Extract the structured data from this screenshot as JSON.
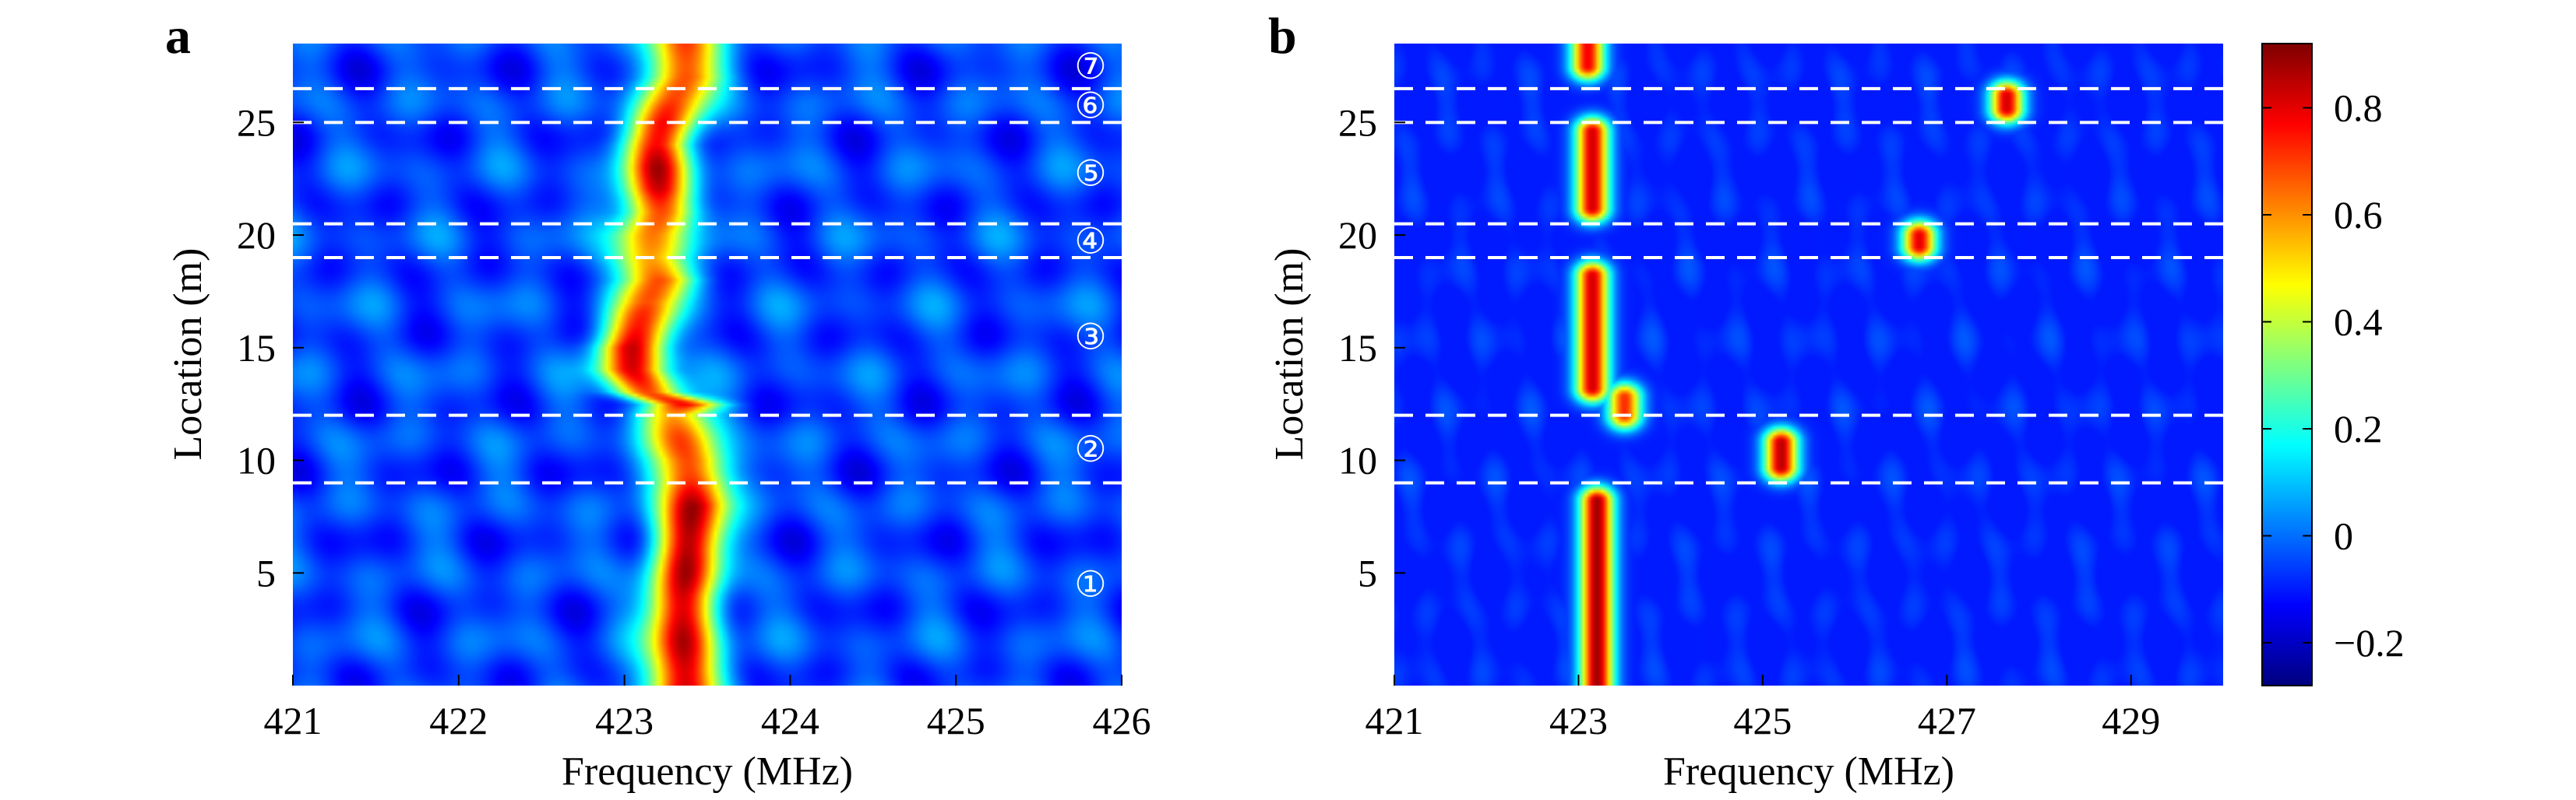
{
  "panels": [
    {
      "letter": "a",
      "xlabel": "Frequency (MHz)",
      "ylabel": "Location (m)",
      "xticks": [
        421,
        422,
        423,
        424,
        425,
        426
      ],
      "yticks": [
        5,
        10,
        15,
        20,
        25
      ],
      "region_labels": [
        "①",
        "②",
        "③",
        "④",
        "⑤",
        "⑥",
        "⑦"
      ]
    },
    {
      "letter": "b",
      "xlabel": "Frequency (MHz)",
      "ylabel": "Location (m)",
      "xticks": [
        421,
        423,
        425,
        427,
        429
      ],
      "yticks": [
        5,
        10,
        15,
        20,
        25
      ]
    }
  ],
  "colorbar": {
    "ticks": [
      "−0.2",
      "0",
      "0.2",
      "0.4",
      "0.6",
      "0.8"
    ]
  },
  "chart_data": [
    {
      "type": "heatmap",
      "xlabel": "Frequency (MHz)",
      "ylabel": "Location (m)",
      "xlim": [
        421,
        426
      ],
      "ylim": [
        0,
        28.5
      ],
      "colormap": "jet",
      "color_range": [
        -0.28,
        0.92
      ],
      "segment_boundaries_m": [
        9,
        12,
        19,
        20.5,
        25,
        26.5
      ],
      "segments": [
        {
          "label": "①",
          "from_m": 0,
          "to_m": 9
        },
        {
          "label": "②",
          "from_m": 9,
          "to_m": 12
        },
        {
          "label": "③",
          "from_m": 12,
          "to_m": 19
        },
        {
          "label": "④",
          "from_m": 19,
          "to_m": 20.5
        },
        {
          "label": "⑤",
          "from_m": 20.5,
          "to_m": 25
        },
        {
          "label": "⑥",
          "from_m": 25,
          "to_m": 26.5
        },
        {
          "label": "⑦",
          "from_m": 26.5,
          "to_m": 28.5
        }
      ],
      "ridge": {
        "location_m": [
          0,
          2,
          4,
          6,
          8,
          9,
          10,
          11,
          12,
          12.5,
          13,
          14,
          15,
          16,
          17,
          18,
          19,
          20,
          21,
          22,
          23,
          24,
          25,
          26,
          27,
          28.5
        ],
        "peak_frequency_MHz": [
          423.35,
          423.35,
          423.35,
          423.38,
          423.42,
          423.42,
          423.4,
          423.35,
          423.3,
          423.35,
          423.15,
          423.05,
          423.05,
          423.1,
          423.15,
          423.2,
          423.15,
          423.15,
          423.2,
          423.2,
          423.2,
          423.2,
          423.25,
          423.3,
          423.35,
          423.35
        ],
        "peak_value": [
          0.85,
          0.85,
          0.8,
          0.82,
          0.88,
          0.8,
          0.75,
          0.7,
          0.62,
          0.85,
          0.72,
          0.78,
          0.82,
          0.7,
          0.62,
          0.72,
          0.65,
          0.68,
          0.72,
          0.8,
          0.78,
          0.7,
          0.75,
          0.7,
          0.72,
          0.7
        ],
        "width_MHz": 0.3
      },
      "background_mean": -0.05
    },
    {
      "type": "heatmap",
      "xlabel": "Frequency (MHz)",
      "ylabel": "Location (m)",
      "xlim": [
        421,
        430
      ],
      "ylim": [
        0,
        28.5
      ],
      "colormap": "jet",
      "color_range": [
        -0.28,
        0.92
      ],
      "segment_boundaries_m": [
        9,
        12,
        19,
        20.5,
        25,
        26.5
      ],
      "hotspots": [
        {
          "frequency_MHz": 423.2,
          "from_m": 0,
          "to_m": 8.2,
          "value": 0.88
        },
        {
          "frequency_MHz": 423.5,
          "from_m": 12,
          "to_m": 12.8,
          "value": 0.72
        },
        {
          "frequency_MHz": 423.15,
          "from_m": 13.2,
          "to_m": 18.2,
          "value": 0.82
        },
        {
          "frequency_MHz": 423.15,
          "from_m": 21.2,
          "to_m": 24.6,
          "value": 0.82
        },
        {
          "frequency_MHz": 423.1,
          "from_m": 27.5,
          "to_m": 28.5,
          "value": 0.78
        },
        {
          "frequency_MHz": 425.2,
          "from_m": 9.7,
          "to_m": 10.8,
          "value": 0.85
        },
        {
          "frequency_MHz": 426.7,
          "from_m": 19.5,
          "to_m": 20.0,
          "value": 0.8
        },
        {
          "frequency_MHz": 427.65,
          "from_m": 25.6,
          "to_m": 26.2,
          "value": 0.82
        }
      ],
      "background_mean": -0.1
    }
  ]
}
